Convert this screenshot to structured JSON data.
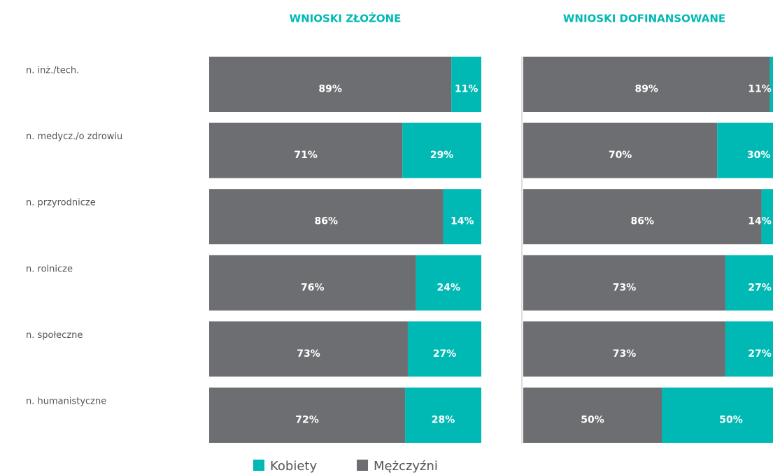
{
  "chart_data": {
    "type": "bar",
    "stacked": true,
    "orientation": "horizontal",
    "categories": [
      "n. inż./tech.",
      "n. medycz./o zdrowiu",
      "n. przyrodnicze",
      "n. rolnicze",
      "n. społeczne",
      "n. humanistyczne"
    ],
    "series": [
      {
        "name": "Mężczyźni",
        "color": "#6d6e71"
      },
      {
        "name": "Kobiety",
        "color": "#00b9b4"
      }
    ],
    "xlim": [
      0,
      100
    ],
    "panels": [
      {
        "title": "WNIOSKI ZŁOŻONE",
        "values": [
          [
            89,
            71,
            86,
            76,
            73,
            72
          ],
          [
            11,
            29,
            14,
            24,
            27,
            28
          ]
        ],
        "value_labels": [
          [
            "89%",
            "71%",
            "86%",
            "76%",
            "73%",
            "72%"
          ],
          [
            "11%",
            "29%",
            "14%",
            "24%",
            "27%",
            "28%"
          ]
        ]
      },
      {
        "title": "WNIOSKI DOFINANSOWANE",
        "values": [
          [
            89,
            70,
            86,
            73,
            73,
            50
          ],
          [
            11,
            30,
            14,
            27,
            27,
            50
          ]
        ],
        "value_labels": [
          [
            "89%",
            "70%",
            "86%",
            "73%",
            "73%",
            "50%"
          ],
          [
            "11%",
            "30%",
            "14%",
            "27%",
            "27%",
            "50%"
          ]
        ]
      }
    ]
  }
}
